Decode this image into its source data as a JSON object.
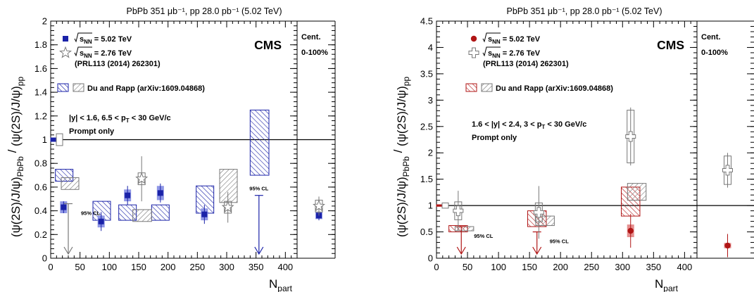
{
  "chart_data": [
    {
      "type": "scatter",
      "title": "PbPb 351 μb⁻¹, pp 28.0 pb⁻¹ (5.02 TeV)",
      "experiment": "CMS",
      "xlabel": "N_part",
      "ylabel": "(ψ(2S)/J/ψ)_PbPb / (ψ(2S)/J/ψ)_pp",
      "xlim": [
        0,
        420
      ],
      "ylim": [
        0,
        2
      ],
      "xticks": [
        0,
        50,
        100,
        150,
        200,
        250,
        300,
        350,
        400
      ],
      "yticks": [
        0,
        0.2,
        0.4,
        0.6,
        0.8,
        1,
        1.2,
        1.4,
        1.6,
        1.8,
        2
      ],
      "yminor": 0.04,
      "reference_line": 1,
      "kinematics": "|y| < 1.6,  6.5 < p_T < 30 GeV/c",
      "selection": "Prompt only",
      "side_panel": {
        "label": "Cent.",
        "range": "0-100%"
      },
      "legend": [
        {
          "marker": "filled-square",
          "color": "#1a22a8",
          "text": "√s_NN = 5.02 TeV"
        },
        {
          "marker": "open-star",
          "color": "#777777",
          "text": "√s_NN = 2.76 TeV",
          "subtext": "(PRL113 (2014) 262301)"
        },
        {
          "marker": "hatch-pair",
          "colors": [
            "#1a22a8",
            "#777777"
          ],
          "text": "Du and Rapp (arXiv:1609.04868)"
        }
      ],
      "series": [
        {
          "name": "√s_NN = 5.02 TeV",
          "marker": "filled-square",
          "color": "#1a22a8",
          "points": [
            {
              "x": 22,
              "y": 0.43,
              "stat": 0.05,
              "syst": 0.05
            },
            {
              "x": 86,
              "y": 0.31,
              "stat": 0.08,
              "syst": 0.05
            },
            {
              "x": 131,
              "y": 0.53,
              "stat": 0.08,
              "syst": 0.05
            },
            {
              "x": 187,
              "y": 0.55,
              "stat": 0.08,
              "syst": 0.06
            },
            {
              "x": 262,
              "y": 0.37,
              "stat": 0.08,
              "syst": 0.05
            }
          ],
          "upper_limits": [
            {
              "x": 355,
              "y": 0.53,
              "label": "95% CL"
            }
          ],
          "integrated": {
            "y": 0.36,
            "stat": 0.04,
            "syst": 0.03
          }
        },
        {
          "name": "√s_NN = 2.76 TeV",
          "marker": "open-star",
          "color": "#777777",
          "points": [
            {
              "x": 155,
              "y": 0.67,
              "stat": 0.19,
              "syst": 0.05
            },
            {
              "x": 302,
              "y": 0.43,
              "stat": 0.13,
              "syst": 0.05
            }
          ],
          "upper_limits": [
            {
              "x": 30,
              "y": 0.46,
              "label": "95% CL"
            }
          ],
          "integrated": {
            "y": 0.44,
            "stat": 0.08,
            "syst": 0.05
          }
        }
      ],
      "theory_bands": [
        {
          "model": "Du and Rapp",
          "energy": "5.02 TeV",
          "color": "#1a22a8",
          "bands": [
            {
              "x0": 8,
              "x1": 38,
              "lo": 0.65,
              "hi": 0.75
            },
            {
              "x0": 72,
              "x1": 102,
              "lo": 0.32,
              "hi": 0.48
            },
            {
              "x0": 116,
              "x1": 146,
              "lo": 0.32,
              "hi": 0.45
            },
            {
              "x0": 172,
              "x1": 202,
              "lo": 0.32,
              "hi": 0.45
            },
            {
              "x0": 248,
              "x1": 278,
              "lo": 0.38,
              "hi": 0.61
            },
            {
              "x0": 340,
              "x1": 372,
              "lo": 0.7,
              "hi": 1.25
            }
          ]
        },
        {
          "model": "Du and Rapp",
          "energy": "2.76 TeV",
          "color": "#777777",
          "bands": [
            {
              "x0": 18,
              "x1": 48,
              "lo": 0.58,
              "hi": 0.68
            },
            {
              "x0": 140,
              "x1": 172,
              "lo": 0.31,
              "hi": 0.41
            },
            {
              "x0": 288,
              "x1": 318,
              "lo": 0.47,
              "hi": 0.75
            }
          ]
        }
      ],
      "pp_uncertainty": [
        {
          "color": "#1a22a8",
          "lo": 0.985,
          "hi": 1.015
        },
        {
          "color": "#777777",
          "lo": 0.95,
          "hi": 1.05
        }
      ]
    },
    {
      "type": "scatter",
      "title": "PbPb 351 μb⁻¹, pp 28.0 pb⁻¹ (5.02 TeV)",
      "experiment": "CMS",
      "xlabel": "N_part",
      "ylabel": "(ψ(2S)/J/ψ)_PbPb / (ψ(2S)/J/ψ)_pp",
      "xlim": [
        0,
        420
      ],
      "ylim": [
        0,
        4.5
      ],
      "xticks": [
        0,
        50,
        100,
        150,
        200,
        250,
        300,
        350,
        400
      ],
      "yticks": [
        0,
        0.5,
        1,
        1.5,
        2,
        2.5,
        3,
        3.5,
        4,
        4.5
      ],
      "yminor": 0.1,
      "reference_line": 1,
      "kinematics": "1.6 < |y| < 2.4,  3 < p_T < 30 GeV/c",
      "selection": "Prompt only",
      "side_panel": {
        "label": "Cent.",
        "range": "0-100%"
      },
      "legend": [
        {
          "marker": "filled-circle",
          "color": "#b01515",
          "text": "√s_NN = 5.02 TeV"
        },
        {
          "marker": "open-cross",
          "color": "#777777",
          "text": "√s_NN = 2.76 TeV",
          "subtext": "(PRL113 (2014) 262301)"
        },
        {
          "marker": "hatch-pair",
          "colors": [
            "#b01515",
            "#777777"
          ],
          "text": "Du and Rapp (arXiv:1609.04868)"
        }
      ],
      "series": [
        {
          "name": "√s_NN = 5.02 TeV",
          "marker": "filled-circle",
          "color": "#b01515",
          "points": [
            {
              "x": 313,
              "y": 0.52,
              "stat": 0.32,
              "syst": 0.12
            }
          ],
          "upper_limits": [
            {
              "x": 40,
              "y": 0.6,
              "label": "95% CL"
            },
            {
              "x": 162,
              "y": 0.5,
              "label": "95% CL"
            }
          ],
          "integrated": {
            "y": 0.24,
            "stat": 0.22,
            "syst": 0.05
          }
        },
        {
          "name": "√s_NN = 2.76 TeV",
          "marker": "open-cross",
          "color": "#777777",
          "points": [
            {
              "x": 35,
              "y": 0.9,
              "stat": 0.38,
              "syst": 0.17
            },
            {
              "x": 165,
              "y": 0.87,
              "stat": 0.5,
              "syst": 0.18
            },
            {
              "x": 313,
              "y": 2.31,
              "stat": 0.55,
              "syst": 0.5
            }
          ],
          "integrated": {
            "y": 1.67,
            "stat": 0.33,
            "syst": 0.27
          }
        }
      ],
      "theory_bands": [
        {
          "model": "Du and Rapp",
          "energy": "5.02 TeV",
          "color": "#b01515",
          "bands": [
            {
              "x0": 20,
              "x1": 50,
              "lo": 0.5,
              "hi": 0.62
            },
            {
              "x0": 147,
              "x1": 177,
              "lo": 0.6,
              "hi": 0.9
            },
            {
              "x0": 298,
              "x1": 328,
              "lo": 0.8,
              "hi": 1.35
            }
          ]
        },
        {
          "model": "Du and Rapp",
          "energy": "2.76 TeV",
          "color": "#777777",
          "bands": [
            {
              "x0": 30,
              "x1": 60,
              "lo": 0.52,
              "hi": 0.6
            },
            {
              "x0": 160,
              "x1": 190,
              "lo": 0.62,
              "hi": 0.8
            },
            {
              "x0": 308,
              "x1": 338,
              "lo": 1.1,
              "hi": 1.42
            }
          ]
        }
      ],
      "pp_uncertainty": [
        {
          "color": "#b01515",
          "lo": 0.985,
          "hi": 1.015
        },
        {
          "color": "#777777",
          "lo": 0.95,
          "hi": 1.05
        }
      ]
    }
  ]
}
